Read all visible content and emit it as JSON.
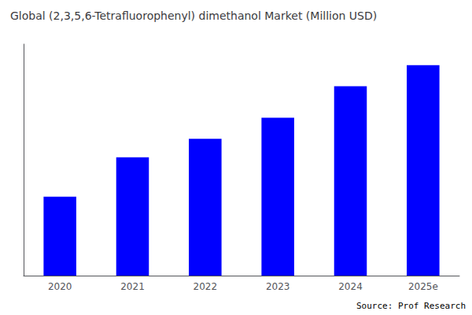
{
  "chart_data": {
    "type": "bar",
    "title": "Global (2,3,5,6-Tetrafluorophenyl) dimethanol Market (Million USD)",
    "categories": [
      "2020",
      "2021",
      "2022",
      "2023",
      "2024",
      "2025e"
    ],
    "values": [
      30,
      45,
      52,
      60,
      72,
      80
    ],
    "color": "#0000FF",
    "ylim": [
      0,
      88
    ],
    "grid": false,
    "tick_labels": "x",
    "annotation": "Source: Prof Research"
  }
}
